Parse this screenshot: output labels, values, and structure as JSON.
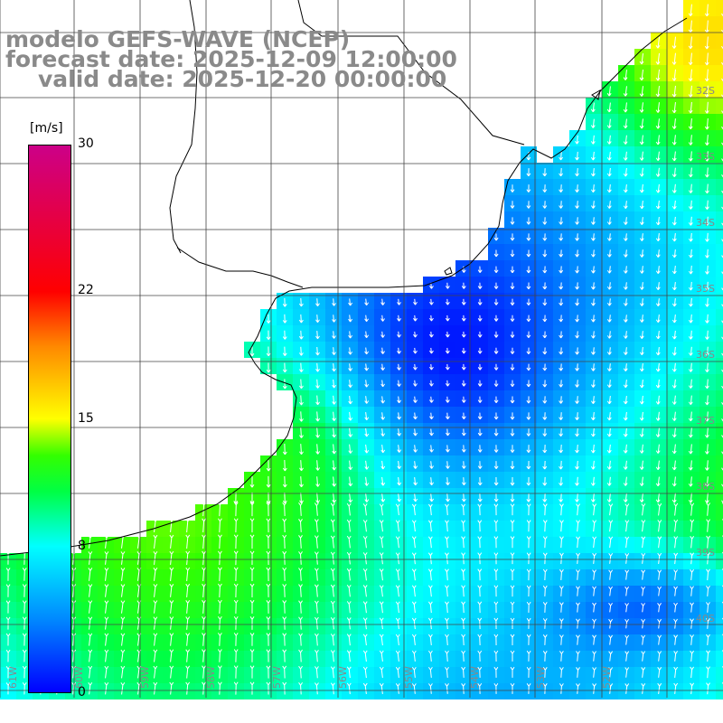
{
  "titles": {
    "model": "modelo GEFS-WAVE (NCEP)",
    "forecast": "forecast date: 2025-12-09 12:00:00",
    "valid": "valid date: 2025-12-20 00:00:00"
  },
  "colorbar": {
    "unit": "[m/s]",
    "range": [
      0,
      30
    ],
    "ticks": [
      {
        "value": 30,
        "label": "30"
      },
      {
        "value": 22,
        "label": "22"
      },
      {
        "value": 15,
        "label": "15"
      },
      {
        "value": 8,
        "label": "8"
      },
      {
        "value": 0,
        "label": "0"
      }
    ],
    "stops": [
      {
        "value": 0,
        "color": "#0000ff"
      },
      {
        "value": 4,
        "color": "#0088ff"
      },
      {
        "value": 8,
        "color": "#00ffff"
      },
      {
        "value": 11,
        "color": "#00ff44"
      },
      {
        "value": 13,
        "color": "#33ff00"
      },
      {
        "value": 15,
        "color": "#ffff00"
      },
      {
        "value": 19,
        "color": "#ff8800"
      },
      {
        "value": 22,
        "color": "#ff0000"
      },
      {
        "value": 30,
        "color": "#cc0088"
      }
    ]
  },
  "map": {
    "lon_range": [
      -62,
      -51
    ],
    "lat_range": [
      -41,
      -30
    ],
    "lat_labels": [
      "32S",
      "33S",
      "34S",
      "35S",
      "36S",
      "37S",
      "38S",
      "39S",
      "40S"
    ],
    "lon_labels": [
      "61W",
      "60W",
      "59W",
      "58W",
      "57W",
      "56W",
      "55W",
      "54W",
      "53W",
      "52W"
    ]
  }
}
